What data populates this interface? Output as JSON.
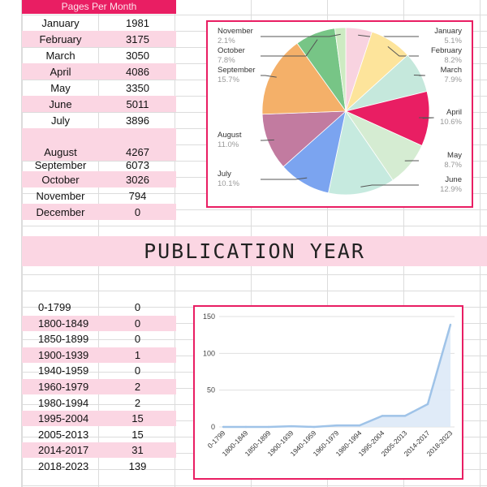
{
  "pages_header": "Pages Per Month",
  "months": [
    {
      "label": "January",
      "value": "1981"
    },
    {
      "label": "February",
      "value": "3175"
    },
    {
      "label": "March",
      "value": "3050"
    },
    {
      "label": "April",
      "value": "4086"
    },
    {
      "label": "May",
      "value": "3350"
    },
    {
      "label": "June",
      "value": "5011"
    },
    {
      "label": "July",
      "value": "3896"
    },
    {
      "label": "August",
      "value": "4267"
    },
    {
      "label": "September",
      "value": "6073"
    },
    {
      "label": "October",
      "value": "3026"
    },
    {
      "label": "November",
      "value": "794"
    },
    {
      "label": "December",
      "value": "0"
    }
  ],
  "banner": "PUBLICATION YEAR",
  "years": [
    {
      "label": "0-1799",
      "value": "0"
    },
    {
      "label": "1800-1849",
      "value": "0"
    },
    {
      "label": "1850-1899",
      "value": "0"
    },
    {
      "label": "1900-1939",
      "value": "1"
    },
    {
      "label": "1940-1959",
      "value": "0"
    },
    {
      "label": "1960-1979",
      "value": "2"
    },
    {
      "label": "1980-1994",
      "value": "2"
    },
    {
      "label": "1995-2004",
      "value": "15"
    },
    {
      "label": "2005-2013",
      "value": "15"
    },
    {
      "label": "2014-2017",
      "value": "31"
    },
    {
      "label": "2018-2023",
      "value": "139"
    }
  ],
  "chart_data": [
    {
      "type": "pie",
      "categories": [
        "January",
        "February",
        "March",
        "April",
        "May",
        "June",
        "July",
        "August",
        "September",
        "October",
        "November"
      ],
      "values": [
        5.1,
        8.2,
        7.9,
        10.6,
        8.7,
        12.9,
        10.1,
        11.0,
        15.7,
        7.8,
        2.1
      ],
      "labels_pct": [
        "5.1%",
        "8.2%",
        "7.9%",
        "10.6%",
        "8.7%",
        "12.9%",
        "10.1%",
        "11.0%",
        "15.7%",
        "7.8%",
        "2.1%"
      ],
      "colors": [
        "#f8d3e0",
        "#fde49b",
        "#c5e8dc",
        "#e91e63",
        "#d5ecd2",
        "#c6eadf",
        "#7ba4f0",
        "#c27ba0",
        "#f4b069",
        "#77c586",
        "#cdebc2"
      ],
      "legend": "labels-outside"
    },
    {
      "type": "area",
      "categories": [
        "0-1799",
        "1800-1849",
        "1850-1899",
        "1900-1939",
        "1940-1959",
        "1960-1979",
        "1980-1994",
        "1995-2004",
        "2005-2013",
        "2014-2017",
        "2018-2023"
      ],
      "values": [
        0,
        0,
        0,
        1,
        0,
        2,
        2,
        15,
        15,
        31,
        139
      ],
      "ylim": [
        0,
        150
      ],
      "yticks": [
        "0",
        "50",
        "100",
        "150"
      ],
      "grid": true,
      "color": "#9fc3e8"
    }
  ]
}
